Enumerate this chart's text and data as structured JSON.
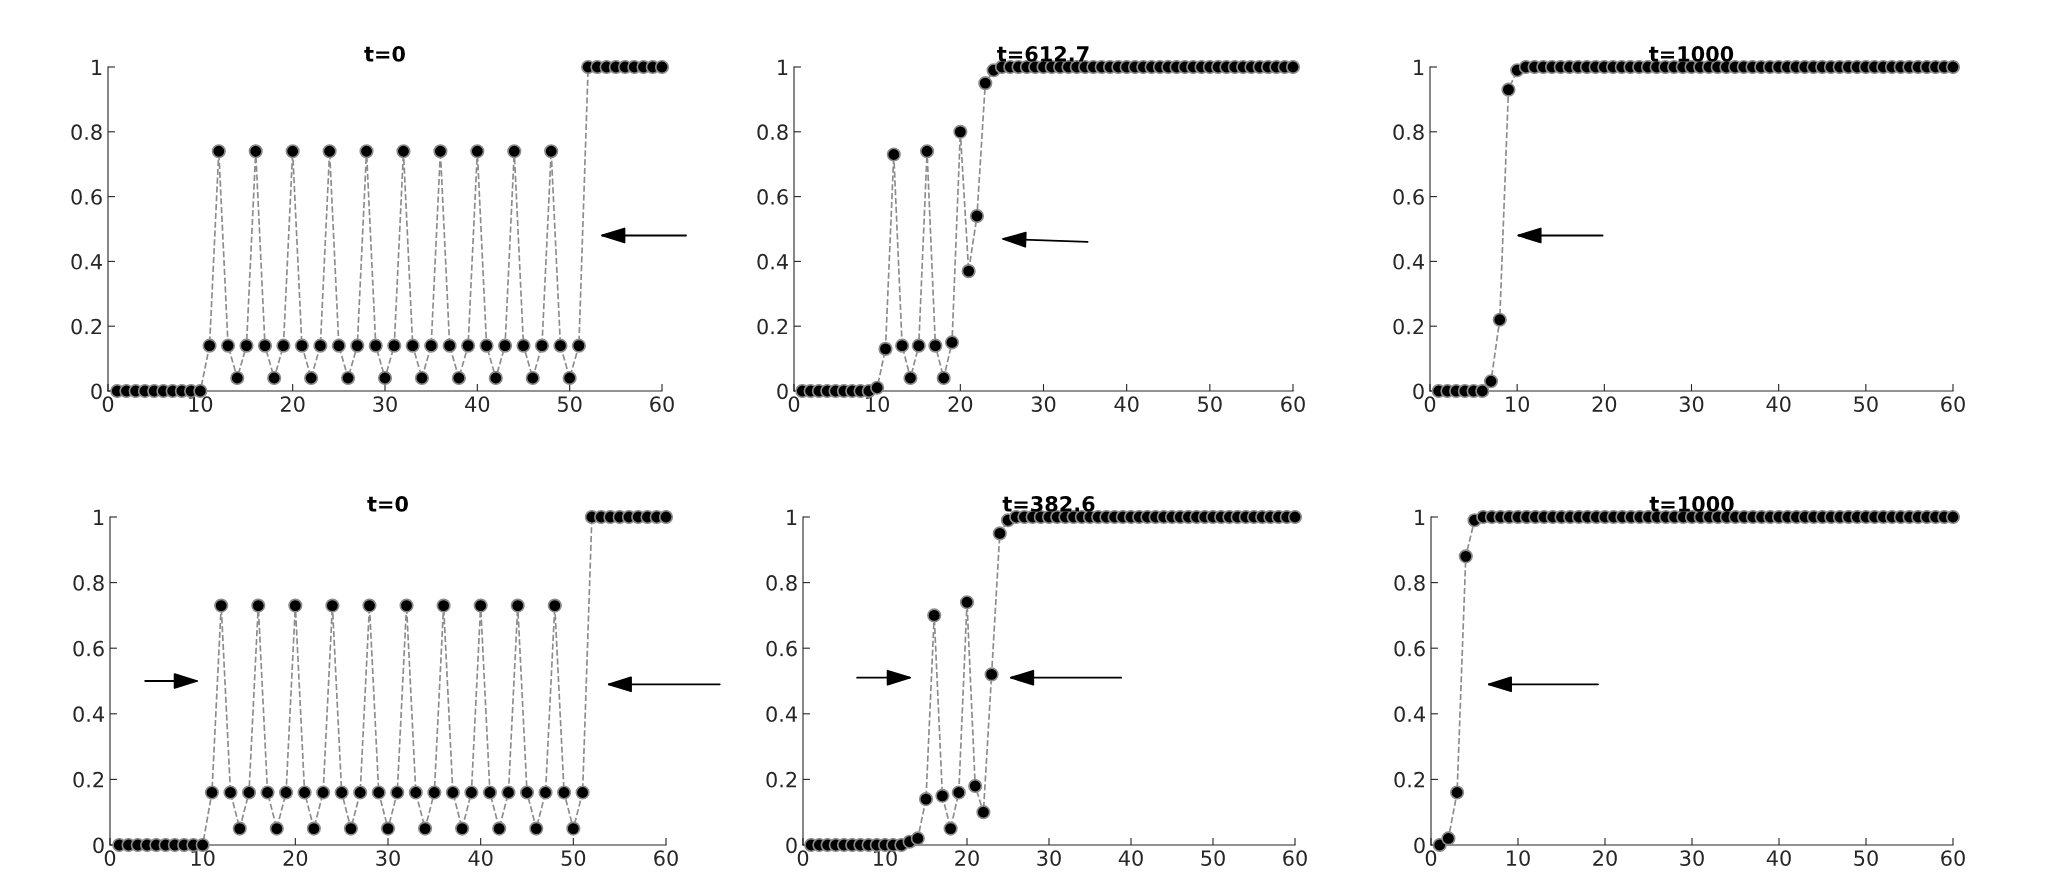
{
  "chart_data": [
    {
      "type": "line",
      "title": "t=0",
      "marker": "circle",
      "line_style": "dashed",
      "xlim": [
        0,
        60
      ],
      "ylim": [
        0,
        1
      ],
      "xticks": [
        0,
        10,
        20,
        30,
        40,
        50,
        60
      ],
      "yticks": [
        0,
        0.2,
        0.4,
        0.6,
        0.8,
        1
      ],
      "x": [
        1,
        2,
        3,
        4,
        5,
        6,
        7,
        8,
        9,
        10,
        11,
        12,
        13,
        14,
        15,
        16,
        17,
        18,
        19,
        20,
        21,
        22,
        23,
        24,
        25,
        26,
        27,
        28,
        29,
        30,
        31,
        32,
        33,
        34,
        35,
        36,
        37,
        38,
        39,
        40,
        41,
        42,
        43,
        44,
        45,
        46,
        47,
        48,
        49,
        50,
        51,
        52,
        53,
        54,
        55,
        56,
        57,
        58,
        59,
        60
      ],
      "series": [
        {
          "color": "#000000",
          "values": [
            0,
            0,
            0,
            0,
            0,
            0,
            0,
            0,
            0,
            0,
            0.14,
            0.74,
            0.14,
            0.04,
            0.14,
            0.74,
            0.14,
            0.04,
            0.14,
            0.74,
            0.14,
            0.04,
            0.14,
            0.74,
            0.14,
            0.04,
            0.14,
            0.74,
            0.14,
            0.04,
            0.14,
            0.74,
            0.14,
            0.04,
            0.14,
            0.74,
            0.14,
            0.04,
            0.14,
            0.74,
            0.14,
            0.04,
            0.14,
            0.74,
            0.14,
            0.04,
            0.14,
            0.74,
            0.14,
            0.04,
            0.14,
            1,
            1,
            1,
            1,
            1,
            1,
            1,
            1,
            1
          ]
        }
      ]
    },
    {
      "type": "line",
      "title": "t=612.7",
      "marker": "circle",
      "line_style": "dashed",
      "xlim": [
        0,
        60
      ],
      "ylim": [
        0,
        1
      ],
      "xticks": [
        0,
        10,
        20,
        30,
        40,
        50,
        60
      ],
      "yticks": [
        0,
        0.2,
        0.4,
        0.6,
        0.8,
        1
      ],
      "x": [
        1,
        2,
        3,
        4,
        5,
        6,
        7,
        8,
        9,
        10,
        11,
        12,
        13,
        14,
        15,
        16,
        17,
        18,
        19,
        20,
        21,
        22,
        23,
        24,
        25,
        26,
        27,
        28,
        29,
        30,
        31,
        32,
        33,
        34,
        35,
        36,
        37,
        38,
        39,
        40,
        41,
        42,
        43,
        44,
        45,
        46,
        47,
        48,
        49,
        50,
        51,
        52,
        53,
        54,
        55,
        56,
        57,
        58,
        59,
        60
      ],
      "series": [
        {
          "color": "#000000",
          "values": [
            0,
            0,
            0,
            0,
            0,
            0,
            0,
            0,
            0,
            0.01,
            0.13,
            0.73,
            0.14,
            0.04,
            0.14,
            0.74,
            0.14,
            0.04,
            0.15,
            0.8,
            0.37,
            0.54,
            0.95,
            0.99,
            1,
            1,
            1,
            1,
            1,
            1,
            1,
            1,
            1,
            1,
            1,
            1,
            1,
            1,
            1,
            1,
            1,
            1,
            1,
            1,
            1,
            1,
            1,
            1,
            1,
            1,
            1,
            1,
            1,
            1,
            1,
            1,
            1,
            1,
            1,
            1
          ]
        }
      ]
    },
    {
      "type": "line",
      "title": "t=1000",
      "marker": "circle",
      "line_style": "dashed",
      "xlim": [
        0,
        60
      ],
      "ylim": [
        0,
        1
      ],
      "xticks": [
        0,
        10,
        20,
        30,
        40,
        50,
        60
      ],
      "yticks": [
        0,
        0.2,
        0.4,
        0.6,
        0.8,
        1
      ],
      "x": [
        1,
        2,
        3,
        4,
        5,
        6,
        7,
        8,
        9,
        10,
        11,
        12,
        13,
        14,
        15,
        16,
        17,
        18,
        19,
        20,
        21,
        22,
        23,
        24,
        25,
        26,
        27,
        28,
        29,
        30,
        31,
        32,
        33,
        34,
        35,
        36,
        37,
        38,
        39,
        40,
        41,
        42,
        43,
        44,
        45,
        46,
        47,
        48,
        49,
        50,
        51,
        52,
        53,
        54,
        55,
        56,
        57,
        58,
        59,
        60
      ],
      "series": [
        {
          "color": "#000000",
          "values": [
            0,
            0,
            0,
            0,
            0,
            0,
            0.03,
            0.22,
            0.93,
            0.99,
            1,
            1,
            1,
            1,
            1,
            1,
            1,
            1,
            1,
            1,
            1,
            1,
            1,
            1,
            1,
            1,
            1,
            1,
            1,
            1,
            1,
            1,
            1,
            1,
            1,
            1,
            1,
            1,
            1,
            1,
            1,
            1,
            1,
            1,
            1,
            1,
            1,
            1,
            1,
            1,
            1,
            1,
            1,
            1,
            1,
            1,
            1,
            1,
            1,
            1
          ]
        }
      ]
    },
    {
      "type": "line",
      "title": "t=0",
      "marker": "circle",
      "line_style": "dashed",
      "xlim": [
        0,
        60
      ],
      "ylim": [
        0,
        1
      ],
      "xticks": [
        0,
        10,
        20,
        30,
        40,
        50,
        60
      ],
      "yticks": [
        0,
        0.2,
        0.4,
        0.6,
        0.8,
        1
      ],
      "x": [
        1,
        2,
        3,
        4,
        5,
        6,
        7,
        8,
        9,
        10,
        11,
        12,
        13,
        14,
        15,
        16,
        17,
        18,
        19,
        20,
        21,
        22,
        23,
        24,
        25,
        26,
        27,
        28,
        29,
        30,
        31,
        32,
        33,
        34,
        35,
        36,
        37,
        38,
        39,
        40,
        41,
        42,
        43,
        44,
        45,
        46,
        47,
        48,
        49,
        50,
        51,
        52,
        53,
        54,
        55,
        56,
        57,
        58,
        59,
        60
      ],
      "series": [
        {
          "color": "#000000",
          "values": [
            0,
            0,
            0,
            0,
            0,
            0,
            0,
            0,
            0,
            0,
            0.16,
            0.73,
            0.16,
            0.05,
            0.16,
            0.73,
            0.16,
            0.05,
            0.16,
            0.73,
            0.16,
            0.05,
            0.16,
            0.73,
            0.16,
            0.05,
            0.16,
            0.73,
            0.16,
            0.05,
            0.16,
            0.73,
            0.16,
            0.05,
            0.16,
            0.73,
            0.16,
            0.05,
            0.16,
            0.73,
            0.16,
            0.05,
            0.16,
            0.73,
            0.16,
            0.05,
            0.16,
            0.73,
            0.16,
            0.05,
            0.16,
            1,
            1,
            1,
            1,
            1,
            1,
            1,
            1,
            1
          ]
        }
      ]
    },
    {
      "type": "line",
      "title": "t=382.6",
      "marker": "circle",
      "line_style": "dashed",
      "xlim": [
        0,
        60
      ],
      "ylim": [
        0,
        1
      ],
      "xticks": [
        0,
        10,
        20,
        30,
        40,
        50,
        60
      ],
      "yticks": [
        0,
        0.2,
        0.4,
        0.6,
        0.8,
        1
      ],
      "x": [
        1,
        2,
        3,
        4,
        5,
        6,
        7,
        8,
        9,
        10,
        11,
        12,
        13,
        14,
        15,
        16,
        17,
        18,
        19,
        20,
        21,
        22,
        23,
        24,
        25,
        26,
        27,
        28,
        29,
        30,
        31,
        32,
        33,
        34,
        35,
        36,
        37,
        38,
        39,
        40,
        41,
        42,
        43,
        44,
        45,
        46,
        47,
        48,
        49,
        50,
        51,
        52,
        53,
        54,
        55,
        56,
        57,
        58,
        59,
        60
      ],
      "series": [
        {
          "color": "#000000",
          "values": [
            0,
            0,
            0,
            0,
            0,
            0,
            0,
            0,
            0,
            0,
            0,
            0,
            0.01,
            0.02,
            0.14,
            0.7,
            0.15,
            0.05,
            0.16,
            0.74,
            0.18,
            0.1,
            0.52,
            0.95,
            0.99,
            1,
            1,
            1,
            1,
            1,
            1,
            1,
            1,
            1,
            1,
            1,
            1,
            1,
            1,
            1,
            1,
            1,
            1,
            1,
            1,
            1,
            1,
            1,
            1,
            1,
            1,
            1,
            1,
            1,
            1,
            1,
            1,
            1,
            1,
            1
          ]
        }
      ]
    },
    {
      "type": "line",
      "title": "t=1000",
      "marker": "circle",
      "line_style": "dashed",
      "xlim": [
        0,
        60
      ],
      "ylim": [
        0,
        1
      ],
      "xticks": [
        0,
        10,
        20,
        30,
        40,
        50,
        60
      ],
      "yticks": [
        0,
        0.2,
        0.4,
        0.6,
        0.8,
        1
      ],
      "x": [
        1,
        2,
        3,
        4,
        5,
        6,
        7,
        8,
        9,
        10,
        11,
        12,
        13,
        14,
        15,
        16,
        17,
        18,
        19,
        20,
        21,
        22,
        23,
        24,
        25,
        26,
        27,
        28,
        29,
        30,
        31,
        32,
        33,
        34,
        35,
        36,
        37,
        38,
        39,
        40,
        41,
        42,
        43,
        44,
        45,
        46,
        47,
        48,
        49,
        50,
        51,
        52,
        53,
        54,
        55,
        56,
        57,
        58,
        59,
        60
      ],
      "series": [
        {
          "color": "#000000",
          "values": [
            0,
            0.02,
            0.16,
            0.88,
            0.99,
            1,
            1,
            1,
            1,
            1,
            1,
            1,
            1,
            1,
            1,
            1,
            1,
            1,
            1,
            1,
            1,
            1,
            1,
            1,
            1,
            1,
            1,
            1,
            1,
            1,
            1,
            1,
            1,
            1,
            1,
            1,
            1,
            1,
            1,
            1,
            1,
            1,
            1,
            1,
            1,
            1,
            1,
            1,
            1,
            1,
            1,
            1,
            1,
            1,
            1,
            1,
            1,
            1,
            1,
            1
          ]
        }
      ]
    }
  ]
}
